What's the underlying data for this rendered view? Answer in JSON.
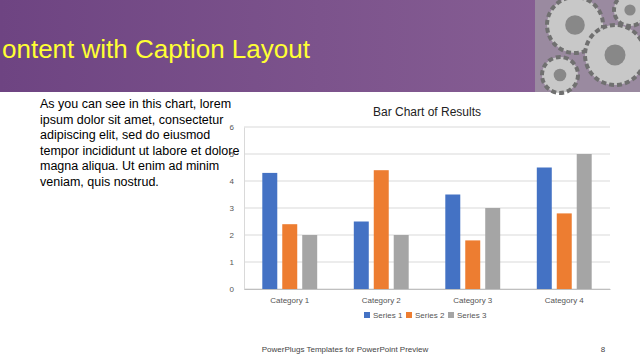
{
  "slide": {
    "title": "ontent with Caption Layout",
    "caption": "As you can see in this chart, lorem ipsum dolor sit amet, consectetur adipiscing elit, sed do eiusmod tempor incididunt ut labore et dolore magna aliqua. Ut enim ad minim veniam, quis nostrud.",
    "footer": "PowerPlugs Templates for PowerPoint Preview",
    "page_number": 8
  },
  "chart_data": {
    "type": "bar",
    "title": "Bar Chart of Results",
    "categories": [
      "Category 1",
      "Category 2",
      "Category 3",
      "Category 4"
    ],
    "series": [
      {
        "name": "Series 1",
        "color": "#4472c4",
        "values": [
          4.3,
          2.5,
          3.5,
          4.5
        ]
      },
      {
        "name": "Series 2",
        "color": "#ed7d31",
        "values": [
          2.4,
          4.4,
          1.8,
          2.8
        ]
      },
      {
        "name": "Series 3",
        "color": "#a5a5a5",
        "values": [
          2,
          2,
          3,
          5
        ]
      }
    ],
    "ylim": [
      0,
      6
    ],
    "yticks": [
      0,
      1,
      2,
      3,
      4,
      5,
      6
    ],
    "grid": true,
    "legend": "bottom"
  }
}
